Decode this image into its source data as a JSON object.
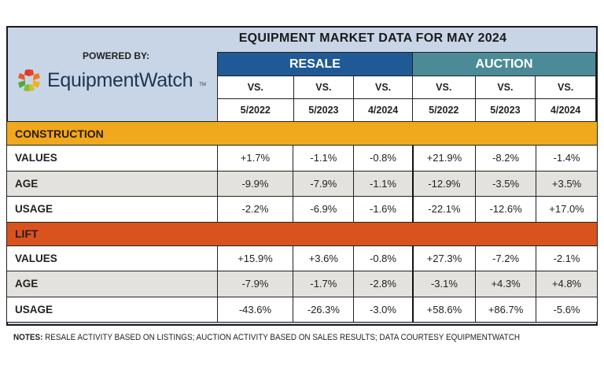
{
  "title": "EQUIPMENT MARKET DATA FOR MAY 2024",
  "powered_by": "POWERED BY:",
  "logo_text": "EquipmentWatch",
  "groups": [
    {
      "label": "RESALE",
      "color": "#1f5a96"
    },
    {
      "label": "AUCTION",
      "color": "#4b8b97"
    }
  ],
  "vs_label": "VS.",
  "periods": [
    "5/2022",
    "5/2023",
    "4/2024",
    "5/2022",
    "5/2023",
    "4/2024"
  ],
  "sections": [
    {
      "name": "CONSTRUCTION",
      "color": "#f0a81c",
      "rows": [
        {
          "label": "VALUES",
          "values": [
            "+1.7%",
            "-1.1%",
            "-0.8%",
            "+21.9%",
            "-8.2%",
            "-1.4%"
          ]
        },
        {
          "label": "AGE",
          "values": [
            "-9.9%",
            "-7.9%",
            "-1.1%",
            "-12.9%",
            "-3.5%",
            "+3.5%"
          ]
        },
        {
          "label": "USAGE",
          "values": [
            "-2.2%",
            "-6.9%",
            "-1.6%",
            "-22.1%",
            "-12.6%",
            "+17.0%"
          ]
        }
      ]
    },
    {
      "name": "LIFT",
      "color": "#d9531e",
      "rows": [
        {
          "label": "VALUES",
          "values": [
            "+15.9%",
            "+3.6%",
            "-0.8%",
            "+27.3%",
            "-7.2%",
            "-2.1%"
          ]
        },
        {
          "label": "AGE",
          "values": [
            "-7.9%",
            "-1.7%",
            "-2.8%",
            "-3.1%",
            "+4.3%",
            "+4.8%"
          ]
        },
        {
          "label": "USAGE",
          "values": [
            "-43.6%",
            "-26.3%",
            "-3.0%",
            "+58.6%",
            "+86.7%",
            "-5.6%"
          ]
        }
      ]
    }
  ],
  "notes": {
    "label": "NOTES:",
    "text": " RESALE ACTIVITY BASED ON LISTINGS; AUCTION ACTIVITY BASED ON SALES RESULTS; DATA COURTESY EQUIPMENTWATCH"
  }
}
